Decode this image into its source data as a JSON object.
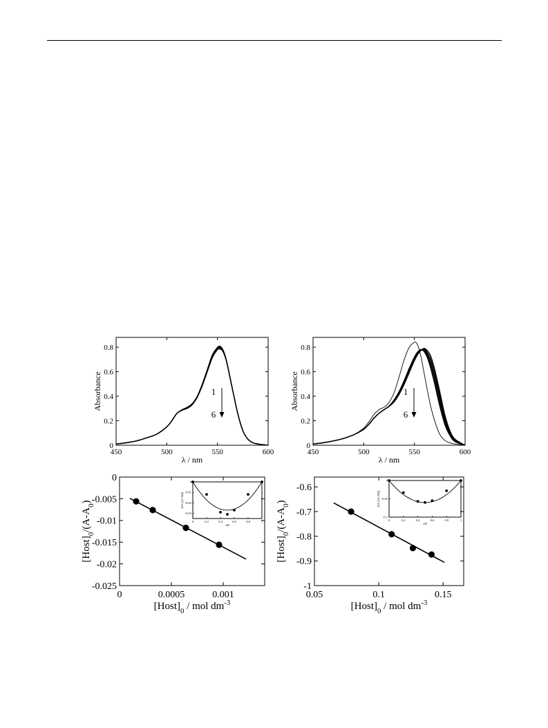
{
  "page": {
    "background": "#ffffff",
    "ink": "#000000"
  },
  "chart_data": [
    {
      "id": "a",
      "type": "line",
      "xlabel": "λ / nm",
      "ylabel": "Absorbance",
      "xlim": [
        450,
        600
      ],
      "ylim": [
        0,
        0.88
      ],
      "xticks": [
        450,
        500,
        550,
        600
      ],
      "yticks": [
        0,
        0.2,
        0.4,
        0.6,
        0.8
      ],
      "xtick_labels": [
        "450",
        "500",
        "550",
        "600"
      ],
      "ytick_labels": [
        "0",
        "0.2",
        "0.4",
        "0.6",
        "0.8"
      ],
      "annotation": {
        "start": "1",
        "end": "6"
      },
      "series": [
        {
          "x": [
            450,
            460,
            470,
            480,
            490,
            500,
            505,
            510,
            515,
            520,
            525,
            530,
            535,
            540,
            545,
            550,
            552,
            554,
            556,
            558,
            560,
            565,
            570,
            575,
            580,
            585,
            590,
            600
          ],
          "y": [
            0.01,
            0.02,
            0.035,
            0.06,
            0.09,
            0.15,
            0.2,
            0.26,
            0.29,
            0.31,
            0.34,
            0.4,
            0.5,
            0.62,
            0.74,
            0.8,
            0.81,
            0.8,
            0.77,
            0.72,
            0.65,
            0.45,
            0.26,
            0.12,
            0.05,
            0.02,
            0.01,
            0.0
          ]
        },
        {
          "x": [
            450,
            460,
            470,
            480,
            490,
            500,
            505,
            510,
            515,
            520,
            525,
            530,
            535,
            540,
            545,
            550,
            552,
            554,
            556,
            558,
            560,
            565,
            570,
            575,
            580,
            585,
            590,
            600
          ],
          "y": [
            0.01,
            0.02,
            0.035,
            0.06,
            0.09,
            0.15,
            0.2,
            0.26,
            0.289,
            0.308,
            0.338,
            0.398,
            0.497,
            0.616,
            0.735,
            0.796,
            0.805,
            0.796,
            0.767,
            0.718,
            0.65,
            0.45,
            0.26,
            0.12,
            0.05,
            0.02,
            0.01,
            0.0
          ]
        },
        {
          "x": [
            450,
            460,
            470,
            480,
            490,
            500,
            505,
            510,
            515,
            520,
            525,
            530,
            535,
            540,
            545,
            550,
            552,
            554,
            556,
            558,
            560,
            565,
            570,
            575,
            580,
            585,
            590,
            600
          ],
          "y": [
            0.01,
            0.02,
            0.035,
            0.06,
            0.09,
            0.15,
            0.2,
            0.26,
            0.288,
            0.306,
            0.336,
            0.396,
            0.494,
            0.612,
            0.73,
            0.792,
            0.8,
            0.792,
            0.764,
            0.716,
            0.649,
            0.45,
            0.26,
            0.12,
            0.05,
            0.02,
            0.01,
            0.0
          ]
        },
        {
          "x": [
            450,
            460,
            470,
            480,
            490,
            500,
            505,
            510,
            515,
            520,
            525,
            530,
            535,
            540,
            545,
            550,
            552,
            554,
            556,
            558,
            560,
            565,
            570,
            575,
            580,
            585,
            590,
            600
          ],
          "y": [
            0.01,
            0.02,
            0.035,
            0.06,
            0.09,
            0.15,
            0.2,
            0.26,
            0.287,
            0.304,
            0.334,
            0.394,
            0.491,
            0.608,
            0.725,
            0.788,
            0.795,
            0.788,
            0.761,
            0.714,
            0.648,
            0.45,
            0.26,
            0.12,
            0.05,
            0.02,
            0.01,
            0.0
          ]
        },
        {
          "x": [
            450,
            460,
            470,
            480,
            490,
            500,
            505,
            510,
            515,
            520,
            525,
            530,
            535,
            540,
            545,
            550,
            552,
            554,
            556,
            558,
            560,
            565,
            570,
            575,
            580,
            585,
            590,
            600
          ],
          "y": [
            0.01,
            0.02,
            0.035,
            0.06,
            0.09,
            0.15,
            0.2,
            0.26,
            0.286,
            0.302,
            0.332,
            0.392,
            0.488,
            0.604,
            0.72,
            0.784,
            0.79,
            0.784,
            0.758,
            0.712,
            0.647,
            0.45,
            0.26,
            0.12,
            0.05,
            0.02,
            0.01,
            0.0
          ]
        },
        {
          "x": [
            450,
            460,
            470,
            480,
            490,
            500,
            505,
            510,
            515,
            520,
            525,
            530,
            535,
            540,
            545,
            550,
            552,
            554,
            556,
            558,
            560,
            565,
            570,
            575,
            580,
            585,
            590,
            600
          ],
          "y": [
            0.01,
            0.02,
            0.035,
            0.06,
            0.09,
            0.15,
            0.2,
            0.26,
            0.285,
            0.3,
            0.33,
            0.39,
            0.485,
            0.6,
            0.715,
            0.78,
            0.785,
            0.78,
            0.755,
            0.71,
            0.646,
            0.45,
            0.26,
            0.12,
            0.05,
            0.02,
            0.01,
            0.0
          ]
        }
      ]
    },
    {
      "id": "b",
      "type": "line",
      "xlabel": "λ / nm",
      "ylabel": "Absorbance",
      "xlim": [
        450,
        600
      ],
      "ylim": [
        0,
        0.88
      ],
      "xticks": [
        450,
        500,
        550,
        600
      ],
      "yticks": [
        0,
        0.2,
        0.4,
        0.6,
        0.8
      ],
      "xtick_labels": [
        "450",
        "500",
        "550",
        "600"
      ],
      "ytick_labels": [
        "0",
        "0.2",
        "0.4",
        "0.6",
        "0.8"
      ],
      "annotation": {
        "start": "1",
        "end": "6"
      },
      "series": [
        {
          "x": [
            450,
            460,
            470,
            480,
            490,
            500,
            505,
            510,
            515,
            520,
            525,
            530,
            535,
            540,
            545,
            550,
            552,
            554,
            556,
            558,
            560,
            563,
            566,
            570,
            575,
            580,
            585,
            590,
            600
          ],
          "y": [
            0.01,
            0.02,
            0.035,
            0.055,
            0.085,
            0.14,
            0.19,
            0.25,
            0.29,
            0.31,
            0.35,
            0.43,
            0.56,
            0.7,
            0.8,
            0.84,
            0.835,
            0.8,
            0.74,
            0.66,
            0.57,
            0.44,
            0.32,
            0.2,
            0.09,
            0.04,
            0.02,
            0.01,
            0.0
          ]
        },
        {
          "x": [
            450,
            460,
            470,
            480,
            490,
            500,
            505,
            510,
            515,
            520,
            525,
            530,
            535,
            540,
            545,
            550,
            553,
            556,
            558,
            560,
            563,
            566,
            570,
            575,
            580,
            585,
            590,
            600
          ],
          "y": [
            0.01,
            0.02,
            0.035,
            0.055,
            0.085,
            0.13,
            0.17,
            0.22,
            0.26,
            0.29,
            0.32,
            0.37,
            0.44,
            0.53,
            0.63,
            0.72,
            0.76,
            0.78,
            0.775,
            0.76,
            0.71,
            0.63,
            0.5,
            0.32,
            0.17,
            0.08,
            0.03,
            0.0
          ]
        },
        {
          "x": [
            450,
            460,
            470,
            480,
            490,
            500,
            505,
            510,
            515,
            520,
            525,
            530,
            535,
            540,
            545,
            550,
            553,
            556,
            558,
            560,
            563,
            566,
            570,
            575,
            580,
            585,
            590,
            600
          ],
          "y": [
            0.01,
            0.02,
            0.035,
            0.055,
            0.085,
            0.13,
            0.17,
            0.22,
            0.26,
            0.29,
            0.319,
            0.366,
            0.434,
            0.522,
            0.621,
            0.713,
            0.754,
            0.777,
            0.778,
            0.77,
            0.726,
            0.655,
            0.53,
            0.35,
            0.19,
            0.09,
            0.035,
            0.0
          ]
        },
        {
          "x": [
            450,
            460,
            470,
            480,
            490,
            500,
            505,
            510,
            515,
            520,
            525,
            530,
            535,
            540,
            545,
            550,
            553,
            556,
            558,
            560,
            563,
            566,
            570,
            575,
            580,
            585,
            590,
            600
          ],
          "y": [
            0.01,
            0.02,
            0.035,
            0.055,
            0.085,
            0.13,
            0.17,
            0.22,
            0.26,
            0.29,
            0.318,
            0.362,
            0.428,
            0.514,
            0.612,
            0.706,
            0.748,
            0.774,
            0.781,
            0.778,
            0.74,
            0.68,
            0.56,
            0.38,
            0.21,
            0.1,
            0.04,
            0.0
          ]
        },
        {
          "x": [
            450,
            460,
            470,
            480,
            490,
            500,
            505,
            510,
            515,
            520,
            525,
            530,
            535,
            540,
            545,
            550,
            553,
            556,
            558,
            560,
            563,
            566,
            570,
            575,
            580,
            585,
            590,
            600
          ],
          "y": [
            0.01,
            0.02,
            0.035,
            0.055,
            0.085,
            0.13,
            0.17,
            0.22,
            0.26,
            0.29,
            0.317,
            0.358,
            0.422,
            0.506,
            0.603,
            0.698,
            0.742,
            0.771,
            0.783,
            0.785,
            0.755,
            0.705,
            0.59,
            0.41,
            0.23,
            0.11,
            0.045,
            0.0
          ]
        },
        {
          "x": [
            450,
            460,
            470,
            480,
            490,
            500,
            505,
            510,
            515,
            520,
            525,
            530,
            535,
            540,
            545,
            550,
            553,
            556,
            558,
            560,
            563,
            566,
            570,
            575,
            580,
            585,
            590,
            600
          ],
          "y": [
            0.01,
            0.02,
            0.035,
            0.055,
            0.085,
            0.13,
            0.17,
            0.22,
            0.26,
            0.29,
            0.316,
            0.354,
            0.416,
            0.498,
            0.594,
            0.69,
            0.736,
            0.768,
            0.785,
            0.79,
            0.77,
            0.73,
            0.62,
            0.44,
            0.25,
            0.12,
            0.05,
            0.0
          ]
        }
      ]
    },
    {
      "id": "c",
      "type": "scatter",
      "xlabel": "[Host]0 / mol dm-3",
      "ylabel": "[Host]0/(A-A0)",
      "xlim": [
        0,
        0.0014
      ],
      "ylim": [
        -0.025,
        0
      ],
      "xticks": [
        0,
        0.0005,
        0.001
      ],
      "yticks": [
        0,
        -0.005,
        -0.01,
        -0.015,
        -0.02,
        -0.025
      ],
      "xtick_labels": [
        "0",
        "0.0005",
        "0.001"
      ],
      "ytick_labels": [
        "0",
        "-0.005",
        "-0.01",
        "-0.015",
        "-0.02",
        "-0.025"
      ],
      "points": {
        "x": [
          0.00016,
          0.00032,
          0.00064,
          0.00096
        ],
        "y": [
          -0.0056,
          -0.0076,
          -0.0117,
          -0.0156
        ]
      },
      "fit_line": {
        "x": [
          0.0001,
          0.00122
        ],
        "y": [
          -0.0049,
          -0.0189
        ]
      },
      "inset": {
        "type": "scatter",
        "xlabel": "xH",
        "ylabel": "ΔA·[(A-A0)]",
        "xlim": [
          0,
          1
        ],
        "ylim": [
          -0.035,
          0
        ],
        "xticks": [
          0,
          0.2,
          0.4,
          0.6,
          0.8,
          1
        ],
        "yticks": [
          0,
          -0.01,
          -0.02,
          -0.03
        ],
        "xtick_labels": [
          "0",
          "0.2",
          "0.4",
          "0.6",
          "0.8",
          "1"
        ],
        "ytick_labels": [
          "0",
          "-0.01",
          "-0.02",
          "-0.03"
        ],
        "points": {
          "x": [
            0,
            0.2,
            0.4,
            0.5,
            0.6,
            0.8,
            1
          ],
          "y": [
            0,
            -0.012,
            -0.029,
            -0.031,
            -0.027,
            -0.012,
            0
          ]
        },
        "curve_vertex": {
          "x": 0.48,
          "y": -0.027
        }
      }
    },
    {
      "id": "d",
      "type": "scatter",
      "xlabel": "[Host]0 / mol dm-3",
      "ylabel": "[Host]0/(A-A0)",
      "xlim": [
        0.05,
        0.166
      ],
      "ylim": [
        -1,
        -0.56
      ],
      "xticks": [
        0.05,
        0.1,
        0.15
      ],
      "yticks": [
        -0.6,
        -0.7,
        -0.8,
        -0.9,
        -1
      ],
      "xtick_labels": [
        "0.05",
        "0.1",
        "0.15"
      ],
      "ytick_labels": [
        "-0.6",
        "-0.7",
        "-0.8",
        "-0.9",
        "-1"
      ],
      "points": {
        "x": [
          0.0785,
          0.11,
          0.1265,
          0.141
        ],
        "y": [
          -0.7,
          -0.792,
          -0.848,
          -0.874
        ]
      },
      "fit_line": {
        "x": [
          0.065,
          0.151
        ],
        "y": [
          -0.665,
          -0.906
        ]
      },
      "inset": {
        "type": "scatter",
        "xlabel": "xH",
        "ylabel": "ΔA·[(A-A0)]",
        "xlim": [
          0,
          1
        ],
        "ylim": [
          -0.1,
          0
        ],
        "xticks": [
          0,
          0.2,
          0.4,
          0.6,
          0.8,
          1
        ],
        "yticks": [
          0,
          -0.05,
          -0.1
        ],
        "xtick_labels": [
          "0",
          "0.2",
          "0.4",
          "0.6",
          "0.8",
          "1"
        ],
        "ytick_labels": [
          "0",
          "-0.05",
          "-0.1"
        ],
        "points": {
          "x": [
            0,
            0.2,
            0.4,
            0.5,
            0.6,
            0.8,
            1
          ],
          "y": [
            0,
            -0.033,
            -0.057,
            -0.06,
            -0.055,
            -0.028,
            0
          ]
        },
        "curve_vertex": {
          "x": 0.47,
          "y": -0.06
        }
      }
    }
  ]
}
